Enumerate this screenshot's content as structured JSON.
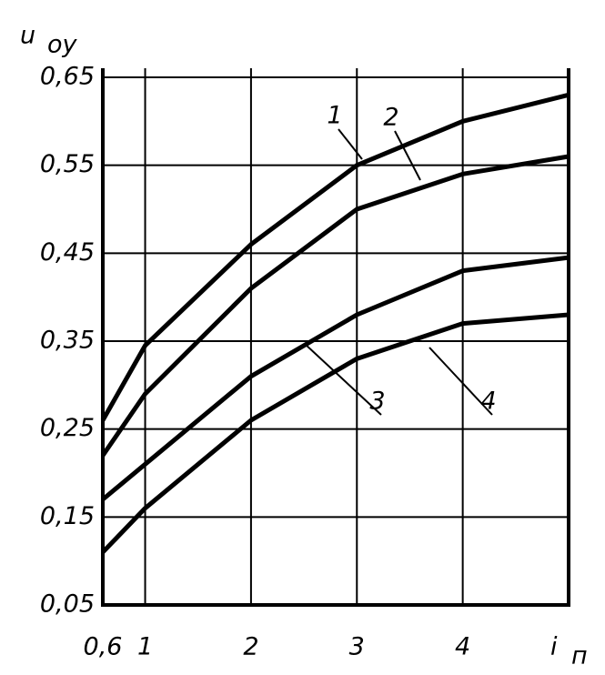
{
  "chart_data": {
    "type": "line",
    "ylabel": "u",
    "ylabel_sub": "оу",
    "xlabel": "i",
    "xlabel_sub": "п",
    "x": [
      0.6,
      1,
      2,
      3,
      4,
      5
    ],
    "series": [
      {
        "name": "1",
        "color": "#000000",
        "values": [
          0.26,
          0.345,
          0.46,
          0.55,
          0.6,
          0.63
        ]
      },
      {
        "name": "2",
        "color": "#000000",
        "values": [
          0.22,
          0.29,
          0.41,
          0.5,
          0.54,
          0.56
        ]
      },
      {
        "name": "3",
        "color": "#000000",
        "values": [
          0.17,
          0.21,
          0.31,
          0.38,
          0.43,
          0.445
        ]
      },
      {
        "name": "4",
        "color": "#000000",
        "values": [
          0.11,
          0.16,
          0.26,
          0.33,
          0.37,
          0.38
        ]
      }
    ],
    "xlim": [
      0.6,
      5
    ],
    "xticks": [
      {
        "value": 0.6,
        "label": "0,6"
      },
      1,
      2,
      3,
      4
    ],
    "ylim": [
      0.05,
      0.65
    ],
    "yticks": [
      {
        "value": 0.05,
        "label": "0,05"
      },
      {
        "value": 0.15,
        "label": "0,15"
      },
      {
        "value": 0.25,
        "label": "0,25"
      },
      {
        "value": 0.35,
        "label": "0,35"
      },
      {
        "value": 0.45,
        "label": "0,45"
      },
      {
        "value": 0.55,
        "label": "0,55"
      },
      {
        "value": 0.65,
        "label": "0,65"
      }
    ],
    "grid": true
  }
}
